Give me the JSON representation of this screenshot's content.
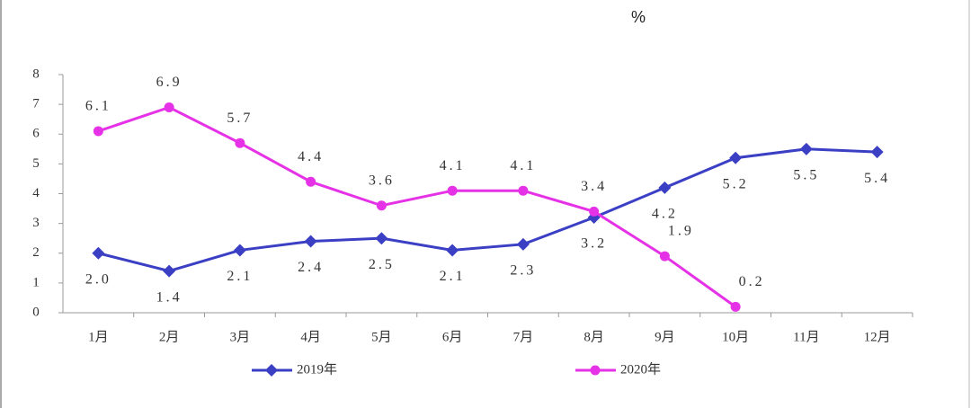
{
  "chart_data": {
    "type": "line",
    "unit": "%",
    "categories": [
      "1月",
      "2月",
      "3月",
      "4月",
      "5月",
      "6月",
      "7月",
      "8月",
      "9月",
      "10月",
      "11月",
      "12月"
    ],
    "series": [
      {
        "name": "2019年",
        "color": "#3b3fc4",
        "marker": "diamond",
        "values": [
          2.0,
          1.4,
          2.1,
          2.4,
          2.5,
          2.1,
          2.3,
          3.2,
          4.2,
          5.2,
          5.5,
          5.4
        ],
        "value_labels": [
          "2.0",
          "1.4",
          "2.1",
          "2.4",
          "2.5",
          "2.1",
          "2.3",
          "3.2",
          "4.2",
          "5.2",
          "5.5",
          "5.4"
        ]
      },
      {
        "name": "2020年",
        "color": "#e632e6",
        "marker": "circle",
        "values": [
          6.1,
          6.9,
          5.7,
          4.4,
          3.6,
          4.1,
          4.1,
          3.4,
          1.9,
          0.2,
          null,
          null
        ],
        "value_labels": [
          "6.1",
          "6.9",
          "5.7",
          "4.4",
          "3.6",
          "4.1",
          "4.1",
          "3.4",
          "1.9",
          "0.2",
          null,
          null
        ]
      }
    ],
    "ylim": [
      0,
      8
    ],
    "yticks": [
      0,
      1,
      2,
      3,
      4,
      5,
      6,
      7,
      8
    ],
    "grid": false
  }
}
